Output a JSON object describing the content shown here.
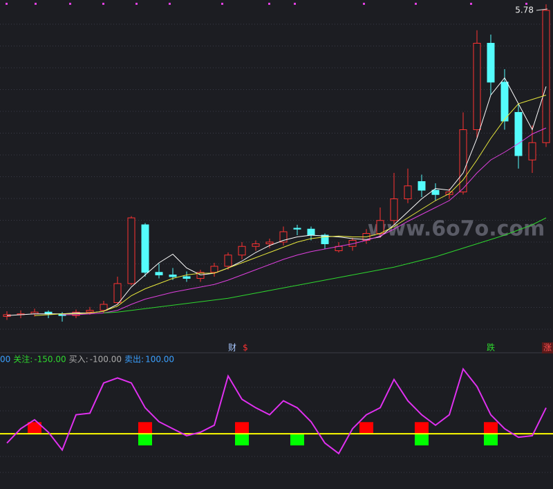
{
  "chart_data": [
    {
      "type": "candlestick",
      "ylim": [
        1.9,
        5.9
      ],
      "up_color": "#ff3232",
      "down_color": "#54fcfc",
      "high_marker": 5.78,
      "candles": {
        "open": [
          2.24,
          2.26,
          2.27,
          2.29,
          2.27,
          2.25,
          2.29,
          2.31,
          2.4,
          2.62,
          3.3,
          2.75,
          2.72,
          2.7,
          2.68,
          2.75,
          2.82,
          2.95,
          3.05,
          3.08,
          3.1,
          3.26,
          3.25,
          3.18,
          3.0,
          3.05,
          3.12,
          3.2,
          3.35,
          3.6,
          3.8,
          3.7,
          3.65,
          3.68,
          4.4,
          5.4,
          4.95,
          4.6,
          4.05,
          4.25
        ],
        "high": [
          2.3,
          2.31,
          2.33,
          2.31,
          2.29,
          2.32,
          2.35,
          2.42,
          2.7,
          3.4,
          3.32,
          2.85,
          2.8,
          2.76,
          2.78,
          2.86,
          2.98,
          3.1,
          3.12,
          3.14,
          3.28,
          3.3,
          3.28,
          3.2,
          3.1,
          3.15,
          3.25,
          3.5,
          3.9,
          3.95,
          3.88,
          3.78,
          3.72,
          4.6,
          5.55,
          5.5,
          5.1,
          4.7,
          4.45,
          5.85
        ],
        "low": [
          2.2,
          2.22,
          2.24,
          2.22,
          2.18,
          2.22,
          2.26,
          2.28,
          2.38,
          2.6,
          2.7,
          2.68,
          2.66,
          2.64,
          2.64,
          2.7,
          2.78,
          2.9,
          3.0,
          3.03,
          3.06,
          3.18,
          3.12,
          3.02,
          2.98,
          3.0,
          3.08,
          3.15,
          3.3,
          3.55,
          3.62,
          3.58,
          3.6,
          3.65,
          4.3,
          4.8,
          4.4,
          3.95,
          3.9,
          4.2
        ],
        "close": [
          2.26,
          2.27,
          2.29,
          2.27,
          2.25,
          2.29,
          2.31,
          2.38,
          2.62,
          3.38,
          2.75,
          2.72,
          2.7,
          2.68,
          2.75,
          2.82,
          2.95,
          3.05,
          3.08,
          3.1,
          3.22,
          3.25,
          3.18,
          3.08,
          3.05,
          3.12,
          3.2,
          3.35,
          3.6,
          3.75,
          3.7,
          3.65,
          3.68,
          4.4,
          5.4,
          4.95,
          4.5,
          4.1,
          4.25,
          5.78
        ]
      },
      "series": [
        {
          "color": "#ffffff",
          "values": [
            2.25,
            2.26,
            2.27,
            2.27,
            2.27,
            2.28,
            2.28,
            2.3,
            2.38,
            2.58,
            2.72,
            2.86,
            2.96,
            2.8,
            2.72,
            2.74,
            2.8,
            2.88,
            2.98,
            3.06,
            3.12,
            3.16,
            3.18,
            3.17,
            3.16,
            3.14,
            3.13,
            3.16,
            3.3,
            3.45,
            3.6,
            3.72,
            3.7,
            3.9,
            4.3,
            4.8,
            5.0,
            4.7,
            4.4,
            4.9
          ]
        },
        {
          "color": "#e8e83c",
          "values": [
            null,
            null,
            2.25,
            2.26,
            2.27,
            2.27,
            2.28,
            2.3,
            2.36,
            2.48,
            2.56,
            2.62,
            2.68,
            2.72,
            2.74,
            2.74,
            2.8,
            2.86,
            2.92,
            2.98,
            3.04,
            3.1,
            3.14,
            3.16,
            3.17,
            3.16,
            3.16,
            3.2,
            3.28,
            3.38,
            3.48,
            3.58,
            3.66,
            3.82,
            4.05,
            4.3,
            4.52,
            4.7,
            4.75,
            4.8
          ]
        },
        {
          "color": "#e040e0",
          "values": [
            null,
            null,
            null,
            null,
            2.26,
            2.26,
            2.27,
            2.28,
            2.31,
            2.38,
            2.44,
            2.48,
            2.52,
            2.55,
            2.58,
            2.61,
            2.66,
            2.72,
            2.78,
            2.84,
            2.9,
            2.95,
            2.99,
            3.02,
            3.05,
            3.08,
            3.12,
            3.17,
            3.25,
            3.34,
            3.42,
            3.5,
            3.58,
            3.72,
            3.9,
            4.05,
            4.14,
            4.24,
            4.35,
            4.42
          ]
        },
        {
          "color": "#2ed82e",
          "values": [
            null,
            null,
            null,
            null,
            null,
            null,
            null,
            2.28,
            2.29,
            2.31,
            2.33,
            2.35,
            2.37,
            2.39,
            2.41,
            2.43,
            2.45,
            2.48,
            2.51,
            2.54,
            2.57,
            2.6,
            2.63,
            2.66,
            2.69,
            2.72,
            2.75,
            2.78,
            2.81,
            2.85,
            2.89,
            2.93,
            2.98,
            3.03,
            3.08,
            3.13,
            3.18,
            3.24,
            3.3,
            3.38
          ]
        }
      ],
      "markers": [
        {
          "text": "财",
          "color": "#a8c8ff"
        },
        {
          "text": "$",
          "color": "#ff3232"
        },
        {
          "text": "跌",
          "color": "#2ed82e"
        },
        {
          "text": "涨",
          "color": "#ff5050"
        }
      ],
      "watermark": "www.6o7o.com"
    },
    {
      "type": "line",
      "ylim": [
        -130,
        200
      ],
      "baseline": 0,
      "header": [
        {
          "text": "00",
          "color": "#3aa0ff"
        },
        {
          "text": "关注:",
          "color": "#2ed82e"
        },
        {
          "text": "-150.00",
          "color": "#2ed82e"
        },
        {
          "text": "买入:",
          "color": "#aaaaaa"
        },
        {
          "text": "-100.00",
          "color": "#aaaaaa"
        },
        {
          "text": "卖出:",
          "color": "#3aa0ff"
        },
        {
          "text": "100.00",
          "color": "#3aa0ff"
        }
      ],
      "series": [
        {
          "color": "#e030f0",
          "values": [
            -24,
            13,
            36,
            4,
            -42,
            49,
            53,
            131,
            144,
            131,
            67,
            31,
            13,
            -5,
            4,
            22,
            149,
            89,
            67,
            49,
            85,
            67,
            31,
            -24,
            -51,
            13,
            49,
            67,
            140,
            85,
            49,
            22,
            49,
            167,
            122,
            49,
            13,
            -9,
            -5,
            67
          ]
        },
        {
          "color": "#ff0000",
          "values": [
            null,
            null,
            30,
            null,
            null,
            null,
            null,
            null,
            null,
            null,
            30,
            null,
            null,
            null,
            null,
            null,
            null,
            30,
            null,
            null,
            null,
            null,
            null,
            null,
            null,
            null,
            30,
            null,
            null,
            null,
            30,
            null,
            null,
            null,
            null,
            30,
            null,
            null,
            null,
            null
          ]
        },
        {
          "color": "#00ff00",
          "values": [
            null,
            null,
            null,
            null,
            null,
            null,
            null,
            null,
            null,
            null,
            -30,
            null,
            null,
            null,
            null,
            null,
            null,
            -30,
            null,
            null,
            null,
            -30,
            null,
            null,
            null,
            null,
            null,
            null,
            null,
            null,
            -30,
            null,
            null,
            null,
            null,
            -30,
            null,
            null,
            null,
            null
          ]
        }
      ],
      "baseline_color": "#ffff00"
    }
  ]
}
